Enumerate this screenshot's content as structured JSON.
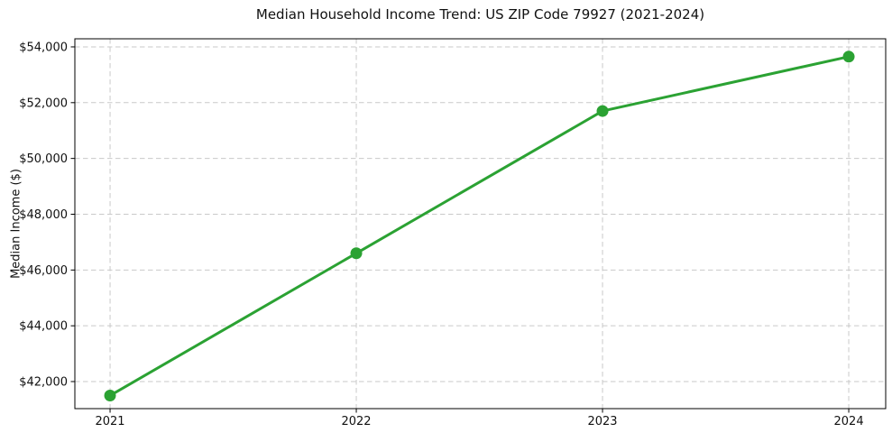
{
  "chart_data": {
    "type": "line",
    "title": "Median Household Income Trend: US ZIP Code 79927 (2021-2024)",
    "xlabel": "",
    "ylabel": "Median Income ($)",
    "x": [
      2021,
      2022,
      2023,
      2024
    ],
    "values": [
      41500,
      46600,
      51700,
      53650
    ],
    "xticks": {
      "values": [
        2021,
        2022,
        2023,
        2024
      ],
      "labels": [
        "2021",
        "2022",
        "2023",
        "2024"
      ]
    },
    "yticks": {
      "values": [
        42000,
        44000,
        46000,
        48000,
        50000,
        52000,
        54000
      ],
      "labels": [
        "$42,000",
        "$44,000",
        "$46,000",
        "$48,000",
        "$50,000",
        "$52,000",
        "$54,000"
      ]
    },
    "xlim": [
      2020.857,
      2024.15
    ],
    "ylim": [
      41030,
      54290
    ],
    "grid": {
      "visible": true,
      "style": "dashed",
      "color": "#c9c9c9"
    },
    "legend": "none",
    "line_color": "#2ba233",
    "axes_color": "#000000",
    "background_color": "#ffffff"
  }
}
